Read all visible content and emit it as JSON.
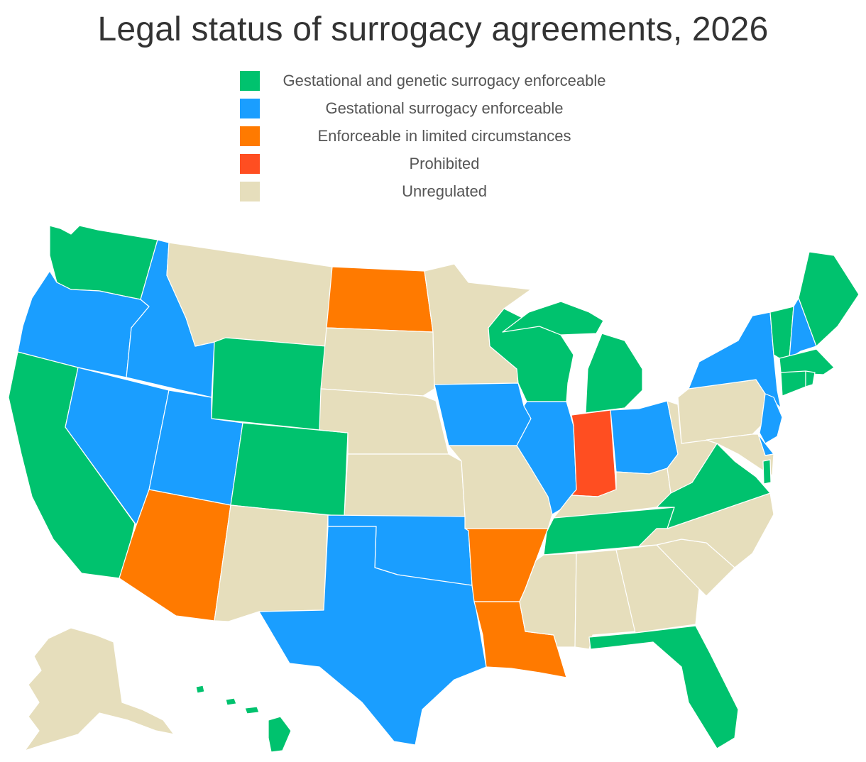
{
  "title": "Legal status of surrogacy agreements, 2026",
  "legend": [
    {
      "key": "gg",
      "label": "Gestational and genetic surrogacy enforceable",
      "color": "#00C26E"
    },
    {
      "key": "gs",
      "label": "Gestational surrogacy enforceable",
      "color": "#1A9EFF"
    },
    {
      "key": "lim",
      "label": "Enforceable in limited circumstances",
      "color": "#FF7A00"
    },
    {
      "key": "pro",
      "label": "Prohibited",
      "color": "#FF4E21"
    },
    {
      "key": "unr",
      "label": "Unregulated",
      "color": "#E6DEBC"
    }
  ],
  "states": [
    {
      "id": "WA",
      "status": "gg"
    },
    {
      "id": "OR",
      "status": "gs"
    },
    {
      "id": "CA",
      "status": "gg"
    },
    {
      "id": "NV",
      "status": "gs"
    },
    {
      "id": "ID",
      "status": "gs"
    },
    {
      "id": "MT",
      "status": "unr"
    },
    {
      "id": "WY",
      "status": "gg"
    },
    {
      "id": "UT",
      "status": "gs"
    },
    {
      "id": "CO",
      "status": "gg"
    },
    {
      "id": "AZ",
      "status": "lim"
    },
    {
      "id": "NM",
      "status": "unr"
    },
    {
      "id": "ND",
      "status": "lim"
    },
    {
      "id": "SD",
      "status": "unr"
    },
    {
      "id": "NE",
      "status": "unr"
    },
    {
      "id": "KS",
      "status": "unr"
    },
    {
      "id": "OK",
      "status": "gs"
    },
    {
      "id": "TX",
      "status": "gs"
    },
    {
      "id": "MN",
      "status": "unr"
    },
    {
      "id": "IA",
      "status": "gs"
    },
    {
      "id": "MO",
      "status": "unr"
    },
    {
      "id": "AR",
      "status": "lim"
    },
    {
      "id": "LA",
      "status": "lim"
    },
    {
      "id": "WI",
      "status": "gg"
    },
    {
      "id": "IL",
      "status": "gs"
    },
    {
      "id": "MI",
      "status": "gg"
    },
    {
      "id": "IN",
      "status": "pro"
    },
    {
      "id": "OH",
      "status": "gs"
    },
    {
      "id": "KY",
      "status": "unr"
    },
    {
      "id": "TN",
      "status": "gg"
    },
    {
      "id": "MS",
      "status": "unr"
    },
    {
      "id": "AL",
      "status": "unr"
    },
    {
      "id": "GA",
      "status": "unr"
    },
    {
      "id": "FL",
      "status": "gg"
    },
    {
      "id": "SC",
      "status": "unr"
    },
    {
      "id": "NC",
      "status": "unr"
    },
    {
      "id": "VA",
      "status": "gg"
    },
    {
      "id": "WV",
      "status": "unr"
    },
    {
      "id": "PA",
      "status": "unr"
    },
    {
      "id": "NY",
      "status": "gs"
    },
    {
      "id": "NJ",
      "status": "gs"
    },
    {
      "id": "DE",
      "status": "gs"
    },
    {
      "id": "MD",
      "status": "unr"
    },
    {
      "id": "DC",
      "status": "gg"
    },
    {
      "id": "CT",
      "status": "gg"
    },
    {
      "id": "RI",
      "status": "gg"
    },
    {
      "id": "MA",
      "status": "gg"
    },
    {
      "id": "VT",
      "status": "gg"
    },
    {
      "id": "NH",
      "status": "gs"
    },
    {
      "id": "ME",
      "status": "gg"
    },
    {
      "id": "AK",
      "status": "unr"
    },
    {
      "id": "HI",
      "status": "gg"
    }
  ]
}
